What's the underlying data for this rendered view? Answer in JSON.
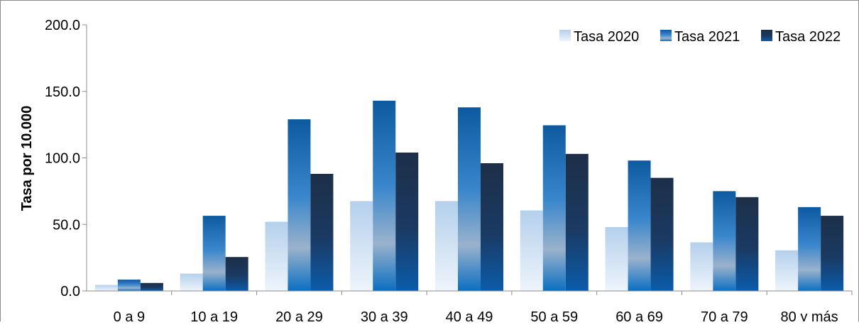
{
  "chart_data": {
    "type": "bar",
    "title": "",
    "xlabel": "",
    "ylabel": "Tasa por 10.000",
    "ylim": [
      0,
      200
    ],
    "yticks": [
      "0.0",
      "50.0",
      "100.0",
      "150.0",
      "200.0"
    ],
    "ytick_values": [
      0,
      50,
      100,
      150,
      200
    ],
    "grid": false,
    "legend_position": "top-right",
    "categories": [
      "0 a 9",
      "10 a 19",
      "20 a 29",
      "30 a 39",
      "40 a 49",
      "50 a 59",
      "60 a 69",
      "70 a 79",
      "80 y más"
    ],
    "series": [
      {
        "name": "Tasa 2020",
        "color": "#bcd4ee",
        "values": [
          4.5,
          13,
          52,
          67.5,
          67.5,
          60.5,
          48,
          36.5,
          30.5
        ]
      },
      {
        "name": "Tasa 2021",
        "color": "#1565b0",
        "values": [
          8.5,
          56.5,
          129,
          143,
          138,
          124.5,
          98,
          75,
          63
        ]
      },
      {
        "name": "Tasa 2022",
        "color": "#17304f",
        "values": [
          6,
          25.5,
          88,
          104,
          96,
          103,
          85,
          70.5,
          56.5
        ]
      }
    ]
  }
}
